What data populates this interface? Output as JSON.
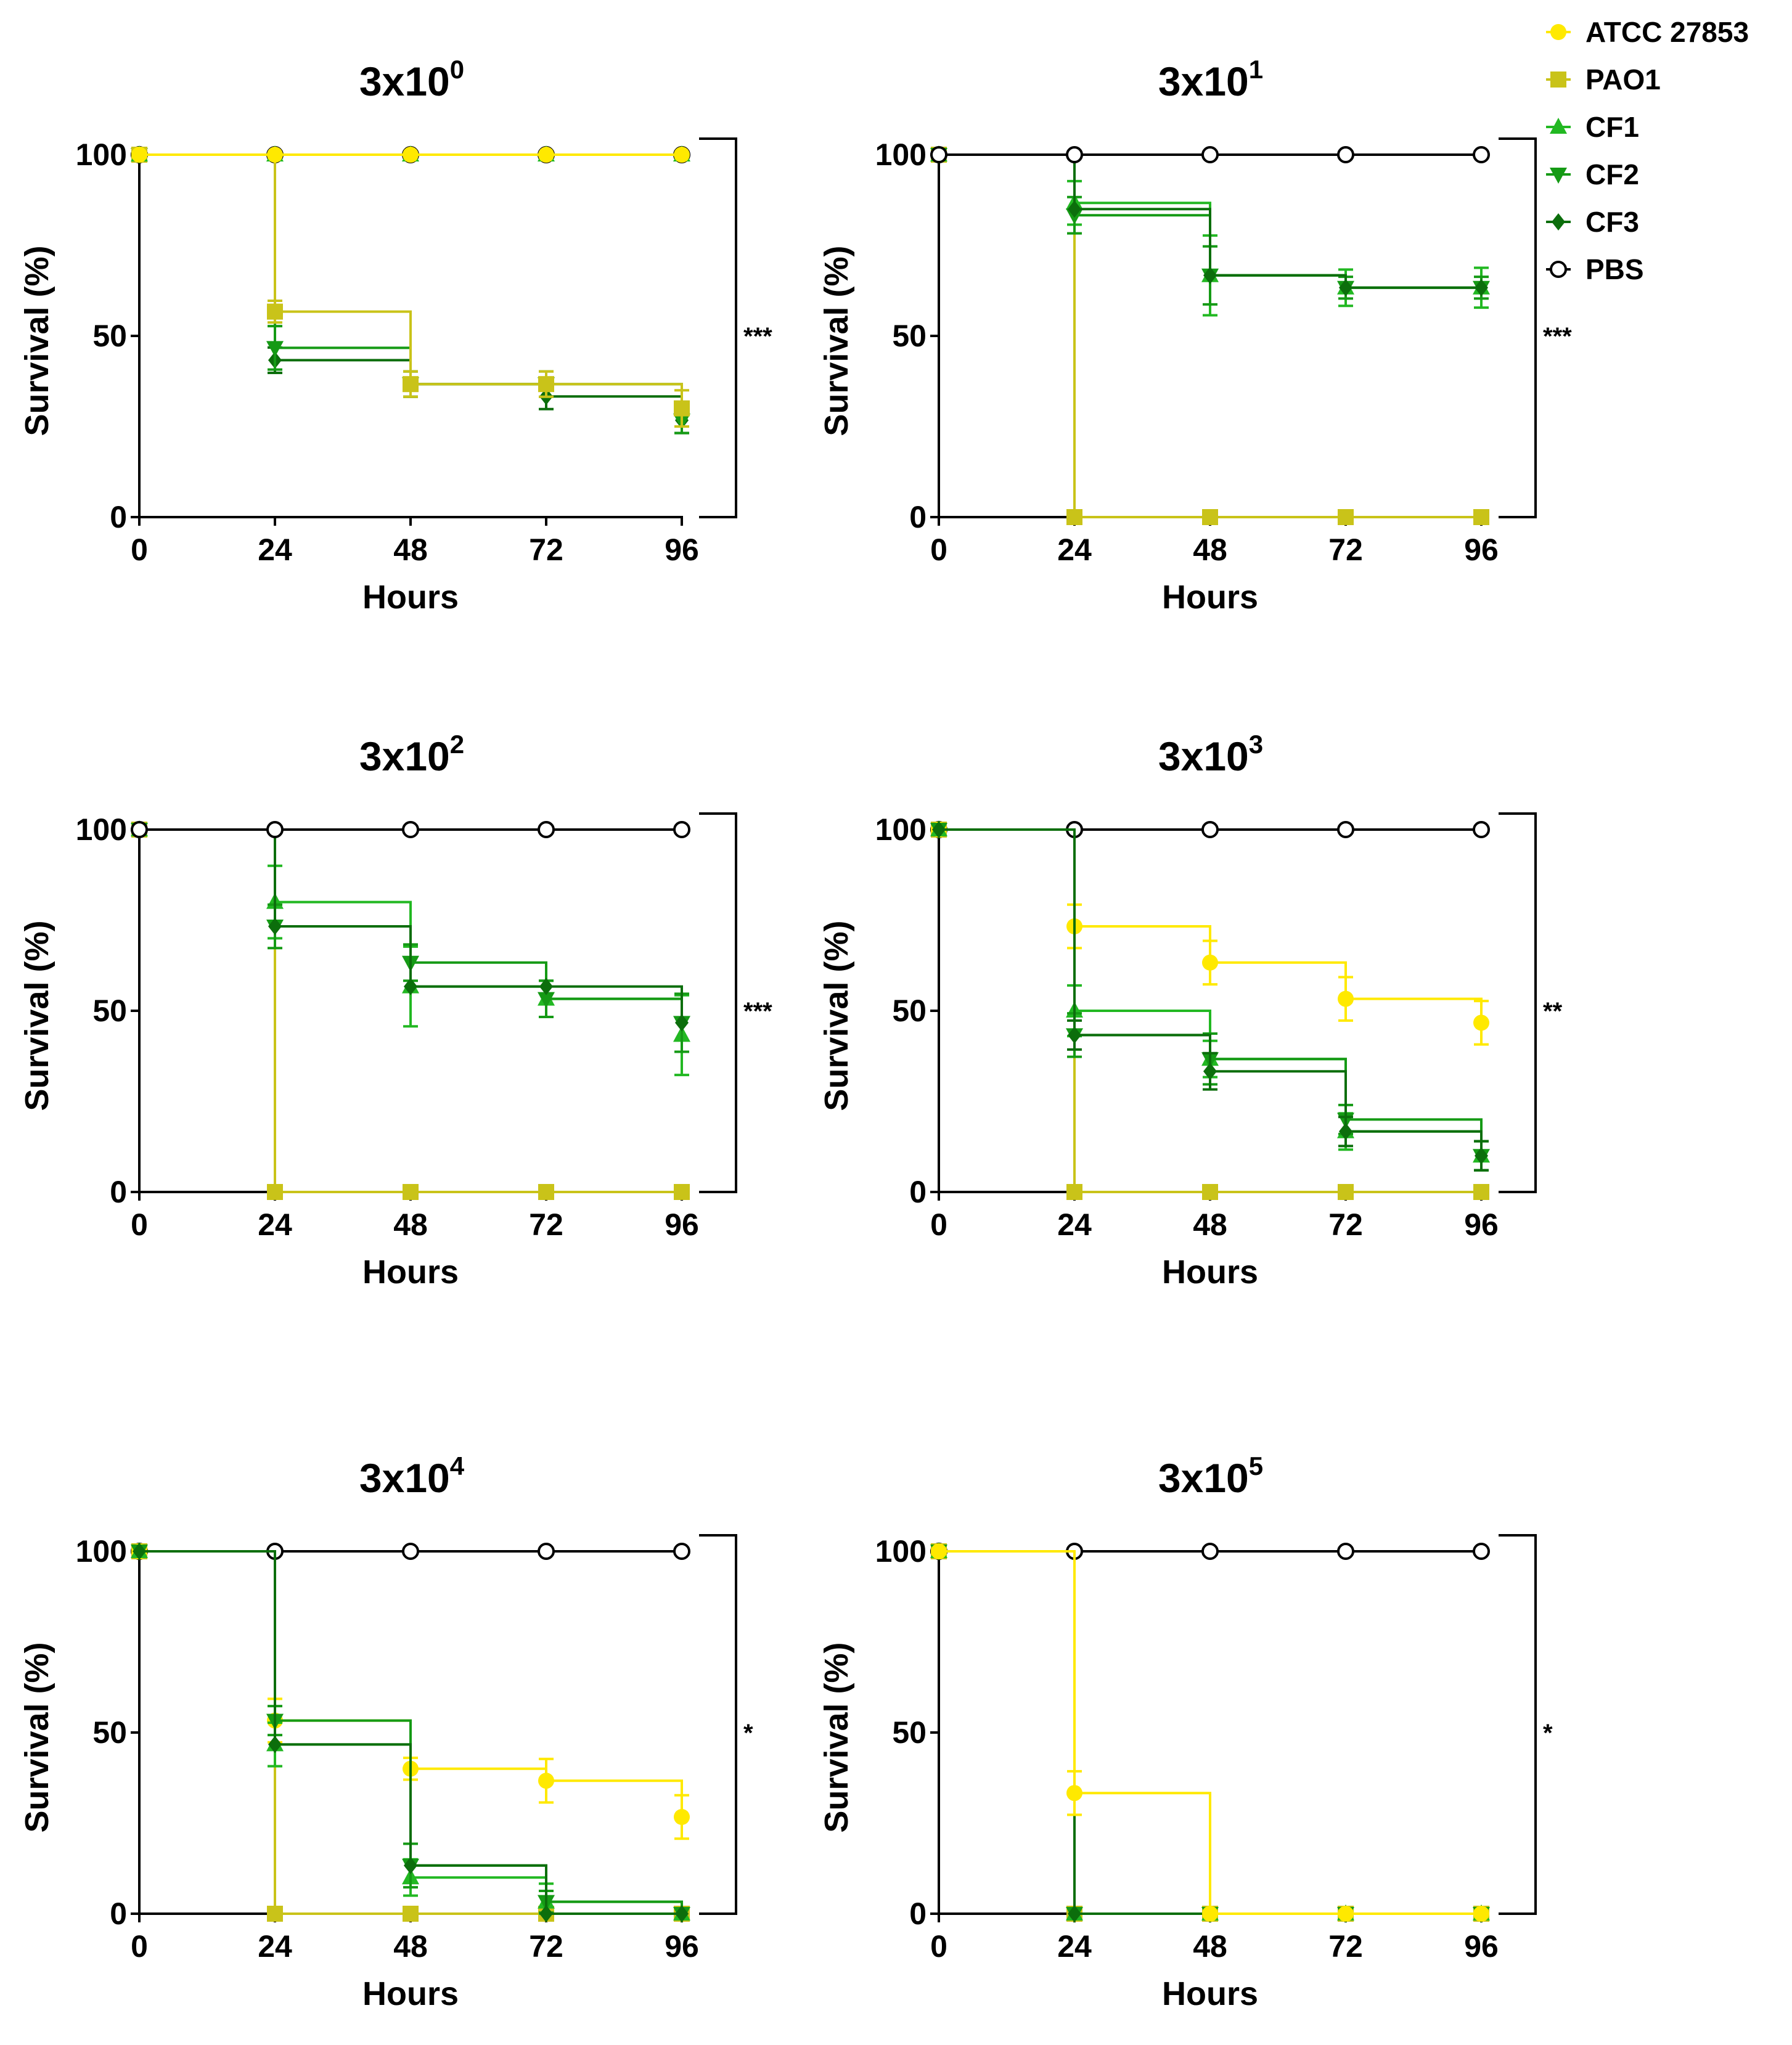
{
  "legend": [
    {
      "name": "ATCC 27853",
      "color": "#ffe900",
      "marker": "circle"
    },
    {
      "name": "PAO1",
      "color": "#c9c319",
      "marker": "square"
    },
    {
      "name": "CF1",
      "color": "#22b822",
      "marker": "triangle-up"
    },
    {
      "name": "CF2",
      "color": "#159a15",
      "marker": "triangle-down"
    },
    {
      "name": "CF3",
      "color": "#0c6e0c",
      "marker": "diamond"
    },
    {
      "name": "PBS",
      "color": "#000000",
      "marker": "open-circle"
    }
  ],
  "chart_data": [
    {
      "type": "line",
      "step": true,
      "title_base": "3x10",
      "title_exp": "0",
      "xlabel": "Hours",
      "ylabel": "Survival (%)",
      "x": [
        0,
        24,
        48,
        72,
        96
      ],
      "xlim": [
        0,
        96
      ],
      "ylim": [
        0,
        100
      ],
      "yticks": [
        0,
        50,
        100
      ],
      "significance": "***",
      "series": [
        {
          "name": "PBS",
          "values": [
            100,
            100,
            100,
            100,
            100
          ]
        },
        {
          "name": "CF3",
          "values": [
            100,
            43.3,
            36.7,
            33.3,
            26.7
          ],
          "err": [
            0,
            3.5,
            3.5,
            3.5,
            3.5
          ]
        },
        {
          "name": "CF2",
          "values": [
            100,
            46.7,
            36.7,
            36.7,
            26.7
          ],
          "err": [
            0,
            6,
            3.5,
            3.5,
            3.5
          ]
        },
        {
          "name": "PAO1",
          "values": [
            100,
            56.7,
            36.7,
            36.7,
            30
          ],
          "err": [
            0,
            3,
            3.5,
            3.5,
            5
          ]
        },
        {
          "name": "CF1",
          "values": [
            100,
            100,
            100,
            100,
            100
          ]
        },
        {
          "name": "ATCC 27853",
          "values": [
            100,
            100,
            100,
            100,
            100
          ]
        }
      ]
    },
    {
      "type": "line",
      "step": true,
      "title_base": "3x10",
      "title_exp": "1",
      "xlabel": "Hours",
      "ylabel": "Survival (%)",
      "x": [
        0,
        24,
        48,
        72,
        96
      ],
      "xlim": [
        0,
        96
      ],
      "ylim": [
        0,
        100
      ],
      "yticks": [
        0,
        50,
        100
      ],
      "significance": "***",
      "series": [
        {
          "name": "PAO1",
          "values": [
            100,
            0,
            0,
            0,
            0
          ]
        },
        {
          "name": "CF1",
          "values": [
            100,
            86.7,
            66.7,
            63.3,
            63.3
          ],
          "err": [
            0,
            6,
            11,
            5,
            5.5
          ]
        },
        {
          "name": "CF2",
          "values": [
            100,
            83.3,
            66.7,
            63.3,
            63.3
          ],
          "err": [
            0,
            5,
            8,
            3,
            3
          ]
        },
        {
          "name": "CF3",
          "values": [
            100,
            85,
            66.7,
            63.3,
            63.3
          ]
        },
        {
          "name": "ATCC 27853",
          "values": [
            100,
            100,
            100,
            100,
            100
          ]
        },
        {
          "name": "PBS",
          "values": [
            100,
            100,
            100,
            100,
            100
          ]
        }
      ]
    },
    {
      "type": "line",
      "step": true,
      "title_base": "3x10",
      "title_exp": "2",
      "xlabel": "Hours",
      "ylabel": "Survival (%)",
      "x": [
        0,
        24,
        48,
        72,
        96
      ],
      "xlim": [
        0,
        96
      ],
      "ylim": [
        0,
        100
      ],
      "yticks": [
        0,
        50,
        100
      ],
      "significance": "***",
      "series": [
        {
          "name": "PAO1",
          "values": [
            100,
            0,
            0,
            0,
            0
          ]
        },
        {
          "name": "CF1",
          "values": [
            100,
            80,
            56.7,
            53.3,
            43.3
          ],
          "err": [
            0,
            10,
            11,
            5,
            11
          ]
        },
        {
          "name": "CF2",
          "values": [
            100,
            73.3,
            63.3,
            53.3,
            46.7
          ],
          "err": [
            0,
            6,
            5,
            5,
            8
          ]
        },
        {
          "name": "CF3",
          "values": [
            100,
            73.3,
            56.7,
            56.7,
            46.7
          ]
        },
        {
          "name": "ATCC 27853",
          "values": [
            100,
            100,
            100,
            100,
            100
          ]
        },
        {
          "name": "PBS",
          "values": [
            100,
            100,
            100,
            100,
            100
          ]
        }
      ]
    },
    {
      "type": "line",
      "step": true,
      "title_base": "3x10",
      "title_exp": "3",
      "xlabel": "Hours",
      "ylabel": "Survival (%)",
      "x": [
        0,
        24,
        48,
        72,
        96
      ],
      "xlim": [
        0,
        96
      ],
      "ylim": [
        0,
        100
      ],
      "yticks": [
        0,
        50,
        100
      ],
      "significance": "**",
      "series": [
        {
          "name": "PBS",
          "values": [
            100,
            100,
            100,
            100,
            100
          ]
        },
        {
          "name": "PAO1",
          "values": [
            100,
            0,
            0,
            0,
            0
          ]
        },
        {
          "name": "ATCC 27853",
          "values": [
            100,
            73.3,
            63.3,
            53.3,
            46.7
          ],
          "err": [
            0,
            6,
            6,
            6,
            6
          ]
        },
        {
          "name": "CF1",
          "values": [
            100,
            50,
            36.7,
            16.7,
            10
          ],
          "err": [
            0,
            7,
            5,
            5,
            4
          ]
        },
        {
          "name": "CF2",
          "values": [
            100,
            43.3,
            36.7,
            20,
            10
          ],
          "err": [
            0,
            6,
            7,
            4,
            4
          ]
        },
        {
          "name": "CF3",
          "values": [
            100,
            43.3,
            33.3,
            16.7,
            10
          ],
          "err": [
            0,
            4,
            5,
            4,
            4
          ]
        }
      ]
    },
    {
      "type": "line",
      "step": true,
      "title_base": "3x10",
      "title_exp": "4",
      "xlabel": "Hours",
      "ylabel": "Survival (%)",
      "x": [
        0,
        24,
        48,
        72,
        96
      ],
      "xlim": [
        0,
        96
      ],
      "ylim": [
        0,
        100
      ],
      "yticks": [
        0,
        50,
        100
      ],
      "significance": "*",
      "series": [
        {
          "name": "PBS",
          "values": [
            100,
            100,
            100,
            100,
            100
          ]
        },
        {
          "name": "PAO1",
          "values": [
            100,
            0,
            0,
            0,
            0
          ]
        },
        {
          "name": "ATCC 27853",
          "values": [
            100,
            53.3,
            40,
            36.7,
            26.7
          ],
          "err": [
            0,
            6,
            3,
            6,
            6
          ]
        },
        {
          "name": "CF1",
          "values": [
            100,
            46.7,
            10,
            3.3,
            0
          ],
          "err": [
            0,
            6,
            5,
            5,
            0
          ]
        },
        {
          "name": "CF2",
          "values": [
            100,
            53.3,
            13.3,
            3.3,
            0
          ],
          "err": [
            0,
            4,
            6,
            3,
            0
          ]
        },
        {
          "name": "CF3",
          "values": [
            100,
            46.7,
            13.3,
            0,
            0
          ]
        }
      ]
    },
    {
      "type": "line",
      "step": true,
      "title_base": "3x10",
      "title_exp": "5",
      "xlabel": "Hours",
      "ylabel": "Survival (%)",
      "x": [
        0,
        24,
        48,
        72,
        96
      ],
      "xlim": [
        0,
        96
      ],
      "ylim": [
        0,
        100
      ],
      "yticks": [
        0,
        50,
        100
      ],
      "significance": "*",
      "series": [
        {
          "name": "PBS",
          "values": [
            100,
            100,
            100,
            100,
            100
          ]
        },
        {
          "name": "PAO1",
          "values": [
            100,
            0,
            0,
            0,
            0
          ]
        },
        {
          "name": "CF1",
          "values": [
            100,
            0,
            0,
            0,
            0
          ]
        },
        {
          "name": "CF2",
          "values": [
            100,
            0,
            0,
            0,
            0
          ]
        },
        {
          "name": "CF3",
          "values": [
            100,
            0,
            0,
            0,
            0
          ]
        },
        {
          "name": "ATCC 27853",
          "values": [
            100,
            33.3,
            0,
            0,
            0
          ],
          "err": [
            0,
            6,
            0,
            0,
            0
          ]
        }
      ]
    }
  ]
}
